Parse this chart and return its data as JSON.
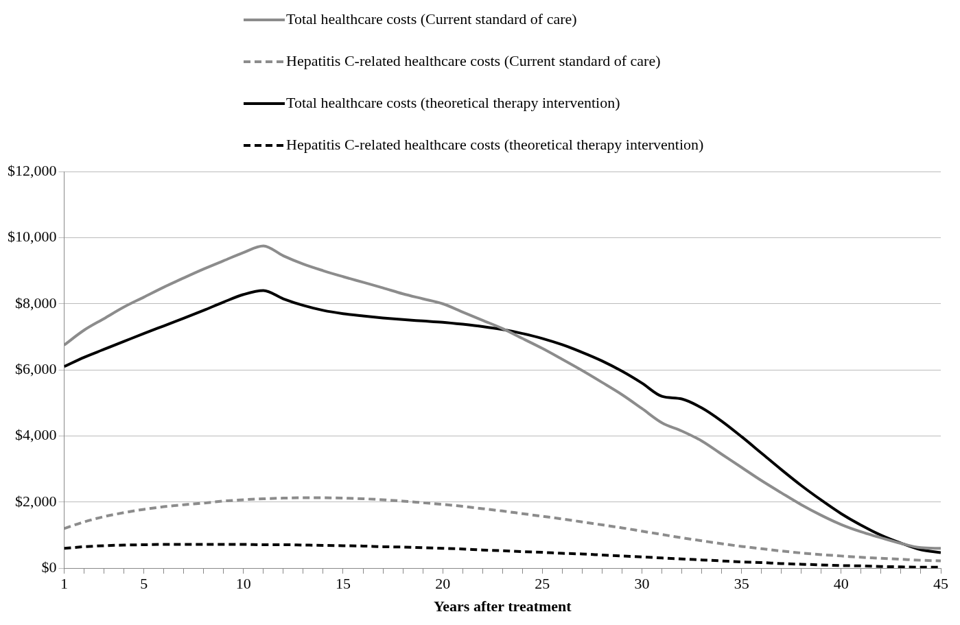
{
  "chart_data": {
    "type": "line",
    "xlabel": "Years after treatment",
    "x": [
      1,
      2,
      3,
      4,
      5,
      6,
      7,
      8,
      9,
      10,
      11,
      12,
      13,
      14,
      15,
      16,
      17,
      18,
      19,
      20,
      21,
      22,
      23,
      24,
      25,
      26,
      27,
      28,
      29,
      30,
      31,
      32,
      33,
      34,
      35,
      36,
      37,
      38,
      39,
      40,
      41,
      42,
      43,
      44,
      45
    ],
    "xlim": [
      1,
      45
    ],
    "xticks": [
      1,
      {
        "value": 2,
        "label": null
      },
      {
        "value": 3,
        "label": null
      },
      {
        "value": 4,
        "label": null
      },
      5,
      {
        "value": 6,
        "label": null
      },
      {
        "value": 7,
        "label": null
      },
      {
        "value": 8,
        "label": null
      },
      {
        "value": 9,
        "label": null
      },
      10,
      {
        "value": 11,
        "label": null
      },
      {
        "value": 12,
        "label": null
      },
      {
        "value": 13,
        "label": null
      },
      {
        "value": 14,
        "label": null
      },
      15,
      {
        "value": 16,
        "label": null
      },
      {
        "value": 17,
        "label": null
      },
      {
        "value": 18,
        "label": null
      },
      {
        "value": 19,
        "label": null
      },
      20,
      {
        "value": 21,
        "label": null
      },
      {
        "value": 22,
        "label": null
      },
      {
        "value": 23,
        "label": null
      },
      {
        "value": 24,
        "label": null
      },
      25,
      {
        "value": 26,
        "label": null
      },
      {
        "value": 27,
        "label": null
      },
      {
        "value": 28,
        "label": null
      },
      {
        "value": 29,
        "label": null
      },
      30,
      {
        "value": 31,
        "label": null
      },
      {
        "value": 32,
        "label": null
      },
      {
        "value": 33,
        "label": null
      },
      {
        "value": 34,
        "label": null
      },
      35,
      {
        "value": 36,
        "label": null
      },
      {
        "value": 37,
        "label": null
      },
      {
        "value": 38,
        "label": null
      },
      {
        "value": 39,
        "label": null
      },
      40,
      {
        "value": 41,
        "label": null
      },
      {
        "value": 42,
        "label": null
      },
      {
        "value": 43,
        "label": null
      },
      {
        "value": 44,
        "label": null
      },
      45
    ],
    "ylim": [
      0,
      12000
    ],
    "yticks": [
      {
        "value": 0,
        "label": "$0"
      },
      {
        "value": 2000,
        "label": "$2,000"
      },
      {
        "value": 4000,
        "label": "$4,000"
      },
      {
        "value": 6000,
        "label": "$6,000"
      },
      {
        "value": 8000,
        "label": "$8,000"
      },
      {
        "value": 10000,
        "label": "$10,000"
      },
      {
        "value": 12000,
        "label": "$12,000"
      }
    ],
    "grid": "y",
    "legend": "top",
    "marker": "none",
    "series": [
      {
        "name": "Total healthcare costs (Current standard of care)",
        "color": "#8c8c8c",
        "line_style": "solid",
        "values": [
          6750,
          7200,
          7550,
          7900,
          8200,
          8500,
          8780,
          9050,
          9300,
          9550,
          9750,
          9450,
          9200,
          9000,
          8820,
          8650,
          8480,
          8300,
          8150,
          8000,
          7750,
          7500,
          7250,
          6950,
          6650,
          6320,
          5980,
          5620,
          5250,
          4830,
          4400,
          4150,
          3850,
          3450,
          3050,
          2650,
          2280,
          1920,
          1600,
          1320,
          1100,
          920,
          750,
          620,
          600
        ]
      },
      {
        "name": "Hepatitis C-related healthcare costs (Current standard of care)",
        "color": "#8c8c8c",
        "line_style": "dashed",
        "values": [
          1200,
          1400,
          1560,
          1680,
          1780,
          1860,
          1920,
          1970,
          2030,
          2070,
          2100,
          2120,
          2130,
          2130,
          2120,
          2100,
          2070,
          2030,
          1980,
          1930,
          1870,
          1800,
          1730,
          1650,
          1570,
          1490,
          1400,
          1310,
          1220,
          1120,
          1020,
          920,
          830,
          740,
          660,
          590,
          520,
          460,
          410,
          370,
          330,
          300,
          270,
          240,
          220
        ]
      },
      {
        "name": "Total healthcare costs (theoretical therapy intervention)",
        "color": "#000000",
        "line_style": "solid",
        "values": [
          6100,
          6380,
          6620,
          6860,
          7100,
          7330,
          7560,
          7800,
          8050,
          8280,
          8400,
          8150,
          7950,
          7800,
          7700,
          7630,
          7570,
          7520,
          7480,
          7440,
          7380,
          7310,
          7220,
          7100,
          6950,
          6760,
          6530,
          6270,
          5960,
          5600,
          5200,
          5120,
          4850,
          4450,
          3980,
          3480,
          2980,
          2500,
          2060,
          1650,
          1300,
          1000,
          760,
          560,
          470
        ]
      },
      {
        "name": "Hepatitis C-related healthcare costs (theoretical therapy intervention)",
        "color": "#000000",
        "line_style": "dashed",
        "values": [
          600,
          650,
          680,
          700,
          710,
          720,
          720,
          720,
          720,
          720,
          710,
          710,
          700,
          690,
          680,
          670,
          650,
          640,
          620,
          600,
          580,
          550,
          530,
          500,
          480,
          450,
          430,
          400,
          370,
          340,
          310,
          280,
          250,
          220,
          190,
          170,
          140,
          120,
          100,
          80,
          70,
          50,
          40,
          30,
          30
        ]
      }
    ]
  }
}
